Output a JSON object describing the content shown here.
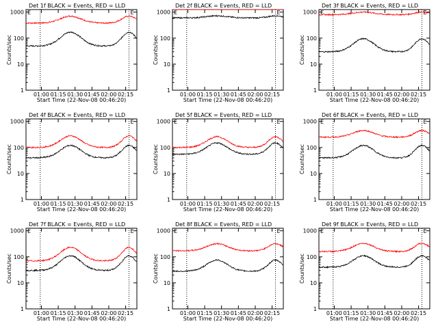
{
  "x_ticks": [
    "01:00",
    "01:15",
    "01:30",
    "01:45",
    "02:00",
    "02:15"
  ],
  "y_ticks": [
    "1",
    "10",
    "100",
    "1000"
  ],
  "xlabel": "Start Time (22-Nov-08 00:46:20)",
  "ylabel": "Counts/sec",
  "marker_text": "E",
  "colors": {
    "events": "#000000",
    "lld": "#ff0000"
  },
  "chart_data": [
    {
      "type": "line",
      "title": "Det 1f BLACK = Events, RED = LLD",
      "xlim_minutes": [
        46.33,
        145
      ],
      "ylim": [
        1,
        1000
      ],
      "y_scale": "log",
      "events": {
        "min": 50,
        "max": 170
      },
      "lld": {
        "min": 380,
        "max": 700
      },
      "vlines": [
        59,
        138
      ]
    },
    {
      "type": "line",
      "title": "Det 2f BLACK = Events, RED = LLD",
      "xlim_minutes": [
        46.33,
        145
      ],
      "ylim": [
        1,
        1000
      ],
      "y_scale": "log",
      "events": {
        "min": 600,
        "max": 720
      },
      "lld": {
        "min": 1700,
        "max": 1800
      },
      "vlines": [
        59,
        138
      ]
    },
    {
      "type": "line",
      "title": "Det 3f BLACK = Events, RED = LLD",
      "xlim_minutes": [
        46.33,
        145
      ],
      "ylim": [
        1,
        1000
      ],
      "y_scale": "log",
      "events": {
        "min": 30,
        "max": 95
      },
      "lld": {
        "min": 800,
        "max": 1000
      },
      "vlines": [
        59,
        138
      ]
    },
    {
      "type": "line",
      "title": "Det 4f BLACK = Events, RED = LLD",
      "xlim_minutes": [
        46.33,
        145
      ],
      "ylim": [
        1,
        1000
      ],
      "y_scale": "log",
      "events": {
        "min": 40,
        "max": 120
      },
      "lld": {
        "min": 100,
        "max": 280
      },
      "vlines": [
        59,
        138
      ]
    },
    {
      "type": "line",
      "title": "Det 5f BLACK = Events, RED = LLD",
      "xlim_minutes": [
        46.33,
        145
      ],
      "ylim": [
        1,
        1000
      ],
      "y_scale": "log",
      "events": {
        "min": 55,
        "max": 150
      },
      "lld": {
        "min": 100,
        "max": 260
      },
      "vlines": [
        59,
        138
      ]
    },
    {
      "type": "line",
      "title": "Det 6f BLACK = Events, RED = LLD",
      "xlim_minutes": [
        46.33,
        145
      ],
      "ylim": [
        1,
        1000
      ],
      "y_scale": "log",
      "events": {
        "min": 40,
        "max": 120
      },
      "lld": {
        "min": 250,
        "max": 450
      },
      "vlines": [
        59,
        138
      ]
    },
    {
      "type": "line",
      "title": "Det 7f BLACK = Events, RED = LLD",
      "xlim_minutes": [
        46.33,
        145
      ],
      "ylim": [
        1,
        1000
      ],
      "y_scale": "log",
      "events": {
        "min": 30,
        "max": 110
      },
      "lld": {
        "min": 70,
        "max": 230
      },
      "vlines": [
        59,
        138
      ]
    },
    {
      "type": "line",
      "title": "Det 8f BLACK = Events, RED = LLD",
      "xlim_minutes": [
        46.33,
        145
      ],
      "ylim": [
        1,
        1000
      ],
      "y_scale": "log",
      "events": {
        "min": 28,
        "max": 75
      },
      "lld": {
        "min": 170,
        "max": 320
      },
      "vlines": [
        59,
        138
      ]
    },
    {
      "type": "line",
      "title": "Det 9f BLACK = Events, RED = LLD",
      "xlim_minutes": [
        46.33,
        145
      ],
      "ylim": [
        1,
        1000
      ],
      "y_scale": "log",
      "events": {
        "min": 40,
        "max": 110
      },
      "lld": {
        "min": 160,
        "max": 330
      },
      "vlines": [
        59,
        138
      ]
    }
  ]
}
